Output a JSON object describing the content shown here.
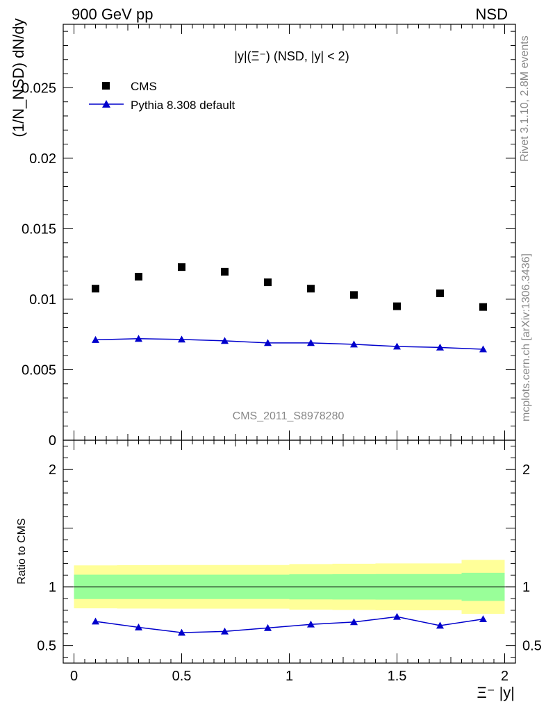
{
  "header": {
    "left": "900 GeV pp",
    "right": "NSD"
  },
  "side_notes": {
    "rivet": "Rivet 3.1.10,  2.8M events",
    "mcplots": "mcplots.cern.ch [arXiv:1306.3436]"
  },
  "watermark": "CMS_2011_S8978280",
  "colors": {
    "mc": "#0000cc",
    "data": "#000000",
    "band_inner": "#99ff99",
    "band_outer": "#ffff99",
    "side_text": "#888888"
  },
  "chart_data": [
    {
      "type": "scatter",
      "title": "|y|(Ξ⁻) (NSD, |y| < 2)",
      "ylabel": "(1/N_NSD) dN/dy",
      "xlim": [
        -0.05,
        2.05
      ],
      "ylim": [
        0,
        0.0295
      ],
      "y_ticks": [
        {
          "v": 0,
          "label": "0"
        },
        {
          "v": 0.005,
          "label": "0.005"
        },
        {
          "v": 0.01,
          "label": "0.01"
        },
        {
          "v": 0.015,
          "label": "0.015"
        },
        {
          "v": 0.02,
          "label": "0.02"
        },
        {
          "v": 0.025,
          "label": "0.025"
        }
      ],
      "x": [
        0.1,
        0.3,
        0.5,
        0.7,
        0.9,
        1.1,
        1.3,
        1.5,
        1.7,
        1.9
      ],
      "series": [
        {
          "name": "CMS",
          "marker": "square",
          "values": [
            0.01075,
            0.0116,
            0.01228,
            0.01195,
            0.0112,
            0.01075,
            0.0103,
            0.0095,
            0.01042,
            0.00945
          ]
        },
        {
          "name": "Pythia 8.308 default",
          "marker": "triangle",
          "line": true,
          "values": [
            0.00712,
            0.0072,
            0.00715,
            0.00705,
            0.0069,
            0.0069,
            0.0068,
            0.00665,
            0.00658,
            0.00645
          ]
        }
      ],
      "legend": "top-left"
    },
    {
      "type": "line",
      "ylabel": "Ratio to CMS",
      "xlabel": "Ξ⁻ |y|",
      "xlim": [
        -0.05,
        2.05
      ],
      "ylim": [
        0.35,
        2.25
      ],
      "x_ticks": [
        {
          "v": 0,
          "label": "0"
        },
        {
          "v": 0.5,
          "label": "0.5"
        },
        {
          "v": 1,
          "label": "1"
        },
        {
          "v": 1.5,
          "label": "1.5"
        },
        {
          "v": 2,
          "label": "2"
        }
      ],
      "y_ticks": [
        {
          "v": 0.5,
          "label": "0.5"
        },
        {
          "v": 1,
          "label": "1"
        },
        {
          "v": 2,
          "label": "2"
        }
      ],
      "bins": [
        [
          0,
          0.2
        ],
        [
          0.2,
          0.4
        ],
        [
          0.4,
          0.6
        ],
        [
          0.6,
          0.8
        ],
        [
          0.8,
          1.0
        ],
        [
          1.0,
          1.2
        ],
        [
          1.2,
          1.4
        ],
        [
          1.4,
          1.6
        ],
        [
          1.6,
          1.8
        ],
        [
          1.8,
          2.0
        ]
      ],
      "band_inner": [
        0.104,
        0.104,
        0.104,
        0.104,
        0.104,
        0.107,
        0.108,
        0.109,
        0.109,
        0.12
      ],
      "band_outer": [
        0.183,
        0.185,
        0.186,
        0.186,
        0.186,
        0.194,
        0.197,
        0.2,
        0.2,
        0.23
      ],
      "x": [
        0.1,
        0.3,
        0.5,
        0.7,
        0.9,
        1.1,
        1.3,
        1.5,
        1.7,
        1.9
      ],
      "ratio": [
        0.705,
        0.655,
        0.61,
        0.62,
        0.65,
        0.68,
        0.7,
        0.745,
        0.67,
        0.725
      ]
    }
  ]
}
